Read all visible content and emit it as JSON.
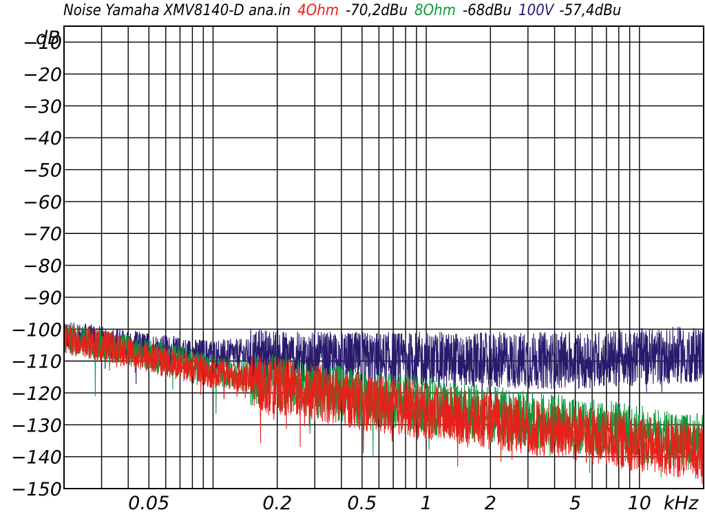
{
  "chart_data": {
    "type": "line",
    "title_parts": [
      {
        "text": "Noise Yamaha XMV8140-D ana.in",
        "color": "#000000"
      },
      {
        "text": "4Ohm",
        "color": "#e8201a"
      },
      {
        "text": "-70,2dBu",
        "color": "#000000"
      },
      {
        "text": "8Ohm",
        "color": "#0a9a3c"
      },
      {
        "text": "-68dBu",
        "color": "#000000"
      },
      {
        "text": "100V",
        "color": "#2a1a6e"
      },
      {
        "text": "-57,4dBu",
        "color": "#000000"
      }
    ],
    "ylabel": "dB",
    "xlabel": "kHz",
    "x_scale": "log",
    "xlim": [
      0.02,
      20
    ],
    "ylim": [
      -150,
      -5
    ],
    "y_ticks": [
      -10,
      -20,
      -30,
      -40,
      -50,
      -60,
      -70,
      -80,
      -90,
      -100,
      -110,
      -120,
      -130,
      -140,
      -150
    ],
    "y_tick_labels": [
      "−10",
      "−20",
      "−30",
      "−40",
      "−50",
      "−60",
      "−70",
      "−80",
      "−90",
      "−100",
      "−110",
      "−120",
      "−130",
      "−140",
      "−150"
    ],
    "x_ticks": [
      0.05,
      0.2,
      0.5,
      1,
      2,
      5,
      10
    ],
    "x_tick_labels": [
      "0.05",
      "0.2",
      "0.5",
      "1",
      "2",
      "5",
      "10"
    ],
    "x_grid": [
      0.03,
      0.04,
      0.05,
      0.06,
      0.07,
      0.08,
      0.09,
      0.1,
      0.2,
      0.3,
      0.4,
      0.5,
      0.6,
      0.7,
      0.8,
      0.9,
      1,
      2,
      3,
      4,
      5,
      6,
      7,
      8,
      9,
      10,
      20
    ],
    "grid": true,
    "series": [
      {
        "name": "4Ohm",
        "color": "#e8201a",
        "x": [
          0.02,
          0.03,
          0.05,
          0.08,
          0.1,
          0.2,
          0.3,
          0.5,
          1,
          2,
          5,
          10,
          20
        ],
        "y": [
          -102,
          -104,
          -108,
          -111,
          -113,
          -116,
          -118,
          -121,
          -124,
          -127,
          -131,
          -134,
          -137
        ]
      },
      {
        "name": "8Ohm",
        "color": "#0a9a3c",
        "x": [
          0.02,
          0.03,
          0.05,
          0.08,
          0.1,
          0.2,
          0.3,
          0.5,
          1,
          2,
          5,
          10,
          20
        ],
        "y": [
          -102,
          -104,
          -107,
          -110,
          -112,
          -115,
          -117,
          -120,
          -122,
          -125,
          -128,
          -131,
          -134
        ]
      },
      {
        "name": "100V",
        "color": "#2a1a6e",
        "x": [
          0.02,
          0.03,
          0.05,
          0.08,
          0.1,
          0.2,
          0.3,
          0.5,
          1,
          2,
          5,
          10,
          20
        ],
        "y": [
          -101,
          -103,
          -105,
          -107,
          -107,
          -107,
          -108,
          -108,
          -108,
          -108,
          -108,
          -107,
          -106
        ]
      }
    ]
  }
}
